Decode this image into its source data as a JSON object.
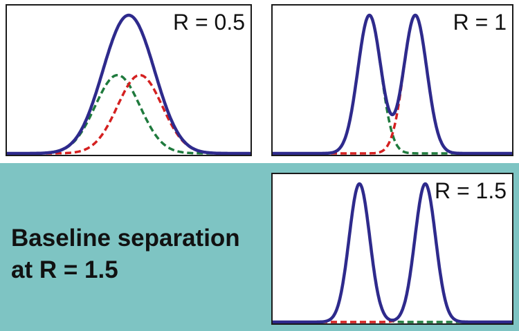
{
  "colors": {
    "envelope": "#2e2a8c",
    "peak_a": "#1f7a3d",
    "peak_b": "#d42020",
    "band": "#7ec4c3"
  },
  "caption": {
    "line1": "Baseline separation",
    "line2": "at R = 1.5"
  },
  "chart_data": [
    {
      "type": "line",
      "title": "R = 0.5",
      "resolution": 0.5,
      "x_range": [
        -6,
        6
      ],
      "peaks": [
        {
          "name": "peak-a",
          "center": -0.55,
          "sigma": 1.1,
          "height": 1.0,
          "style": "dashed"
        },
        {
          "name": "peak-b",
          "center": 0.55,
          "sigma": 1.1,
          "height": 1.0,
          "style": "dashed"
        }
      ],
      "series": [
        {
          "name": "sum",
          "style": "solid"
        }
      ]
    },
    {
      "type": "line",
      "title": "R = 1",
      "resolution": 1,
      "x_range": [
        -6,
        6
      ],
      "peaks": [
        {
          "name": "peak-a",
          "center": -1.15,
          "sigma": 0.58,
          "height": 1.0,
          "style": "dashed"
        },
        {
          "name": "peak-b",
          "center": 1.15,
          "sigma": 0.58,
          "height": 1.0,
          "style": "dashed"
        }
      ],
      "series": [
        {
          "name": "sum",
          "style": "solid"
        }
      ]
    },
    {
      "type": "line",
      "title": "R = 1.5",
      "resolution": 1.5,
      "x_range": [
        -6,
        6
      ],
      "peaks": [
        {
          "name": "peak-a",
          "center": -1.65,
          "sigma": 0.52,
          "height": 1.0,
          "style": "dashed"
        },
        {
          "name": "peak-b",
          "center": 1.65,
          "sigma": 0.52,
          "height": 1.0,
          "style": "dashed"
        }
      ],
      "series": [
        {
          "name": "sum",
          "style": "solid"
        }
      ]
    }
  ]
}
